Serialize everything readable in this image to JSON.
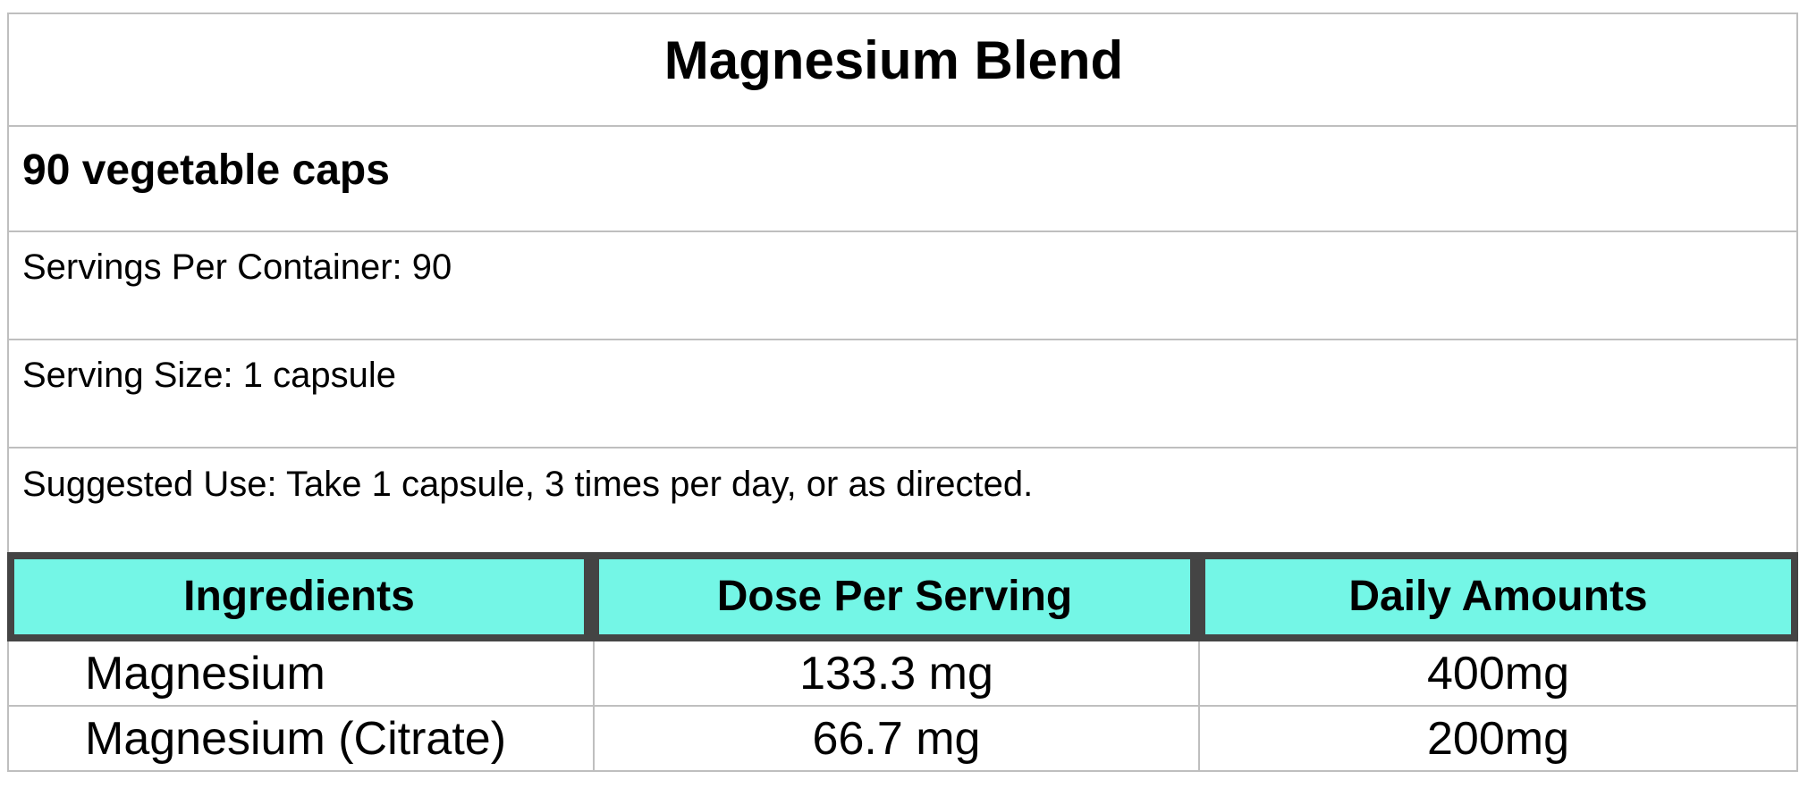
{
  "label": {
    "title": "Magnesium Blend",
    "quantity": "90 vegetable caps",
    "servings_per_container": "Servings Per Container: 90",
    "serving_size": "Serving Size: 1 capsule",
    "suggested_use": "Suggested Use: Take 1 capsule, 3 times per day, or as directed."
  },
  "ingredients_table": {
    "columns": [
      "Ingredients",
      "Dose Per Serving",
      "Daily Amounts"
    ],
    "rows": [
      {
        "ingredient": "Magnesium",
        "dose_per_serving": "133.3 mg",
        "daily_amount": "400mg"
      },
      {
        "ingredient": "Magnesium (Citrate)",
        "dose_per_serving": "66.7 mg",
        "daily_amount": "200mg"
      }
    ]
  },
  "colors": {
    "header_fill": "#74F6E6",
    "header_border": "#444444",
    "grid_line": "#BFBFBF",
    "text": "#000000"
  }
}
